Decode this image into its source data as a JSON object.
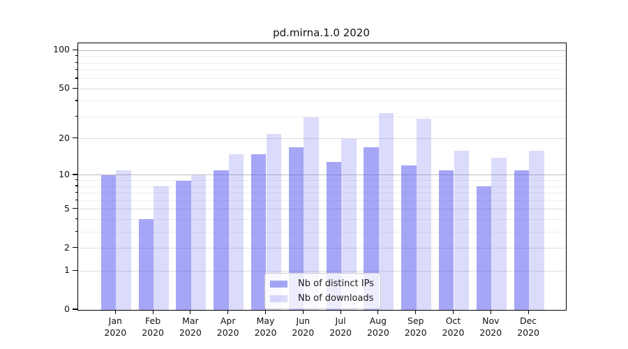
{
  "title": "pd.mirna.1.0 2020",
  "legend": {
    "items": [
      {
        "label": "Nb of distinct IPs",
        "color": "rgba(85,85,238,0.52)"
      },
      {
        "label": "Nb of downloads",
        "color": "rgba(85,85,238,0.21)"
      }
    ]
  },
  "colors": {
    "bar_distinct_ips": "rgba(85,85,238,0.52)",
    "bar_downloads": "rgba(85,85,238,0.21)",
    "grid_strong": "#bdbdbd",
    "grid_medium": "#dcdcdc",
    "grid_minor": "#eeeeee",
    "spine": "#000000",
    "text": "#111111",
    "legend_border": "#cccccc",
    "legend_bg": "rgba(255,255,255,0.8)"
  },
  "chart_data": {
    "type": "bar",
    "title": "pd.mirna.1.0 2020",
    "categories": [
      "Jan 2020",
      "Feb 2020",
      "Mar 2020",
      "Apr 2020",
      "May 2020",
      "Jun 2020",
      "Jul 2020",
      "Aug 2020",
      "Sep 2020",
      "Oct 2020",
      "Nov 2020",
      "Dec 2020"
    ],
    "x_label_months": [
      "Jan",
      "Feb",
      "Mar",
      "Apr",
      "May",
      "Jun",
      "Jul",
      "Aug",
      "Sep",
      "Oct",
      "Nov",
      "Dec"
    ],
    "x_label_year": "2020",
    "series": [
      {
        "name": "Nb of distinct IPs",
        "values": [
          10,
          4,
          9,
          11,
          15,
          17,
          13,
          17,
          12,
          11,
          8,
          11
        ]
      },
      {
        "name": "Nb of downloads",
        "values": [
          11,
          8,
          10,
          15,
          22,
          30,
          20,
          32,
          29,
          16,
          14,
          16
        ]
      }
    ],
    "xlabel": "",
    "ylabel": "",
    "yscale": "log10(value+1)",
    "ylim": [
      0,
      114
    ],
    "y_ticks": [
      0,
      1,
      2,
      5,
      10,
      20,
      50,
      100
    ],
    "grid": true,
    "grid_strong_values": [
      10,
      100
    ],
    "grid_medium_values": [
      1,
      2,
      5,
      20,
      50
    ],
    "grid_minor_values": [
      3,
      4,
      6,
      7,
      8,
      9,
      30,
      40,
      60,
      70,
      80,
      90
    ],
    "legend_position": "lower center"
  }
}
